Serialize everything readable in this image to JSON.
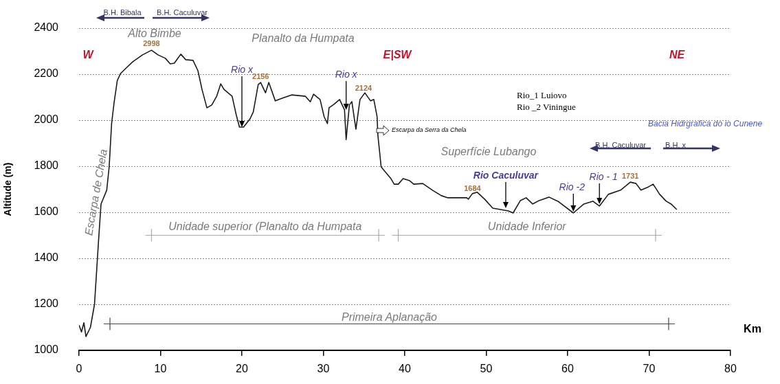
{
  "chart_data": {
    "type": "line",
    "ylabel": "Altitude (m)",
    "xlabel": "Km",
    "x": [
      0,
      0.3,
      0.6,
      0.85,
      1.4,
      1.9,
      2.4,
      2.7,
      3.4,
      3.7,
      4.0,
      4.3,
      4.7,
      5.1,
      5.7,
      6.6,
      7.8,
      8.9,
      9.7,
      10.6,
      11.2,
      11.7,
      12.5,
      13.1,
      14.0,
      14.6,
      15.1,
      15.7,
      16.3,
      16.9,
      17.4,
      17.8,
      18.8,
      19.3,
      19.7,
      20.2,
      21.0,
      21.4,
      22.0,
      22.3,
      22.9,
      23.3,
      24.1,
      25.0,
      26.1,
      27.8,
      28.4,
      28.8,
      29.6,
      30.1,
      30.5,
      30.7,
      31.3,
      32.0,
      32.6,
      32.8,
      33.2,
      33.5,
      34.0,
      34.5,
      35.1,
      35.8,
      36.2,
      36.6,
      36.7,
      37.1,
      38.3,
      38.7,
      39.2,
      39.8,
      40.6,
      41.1,
      42.2,
      43.4,
      44.5,
      45.3,
      47.6,
      47.8,
      48.3,
      48.9,
      49.8,
      50.8,
      52.7,
      53.3,
      54.2,
      54.9,
      55.7,
      56.5,
      57.7,
      58.8,
      60.7,
      62.0,
      63.1,
      63.9,
      65.0,
      66.5,
      67.7,
      68.4,
      69.0,
      69.9,
      70.5,
      71.3,
      72.1,
      72.7,
      73.4
    ],
    "series": [
      {
        "color": "#1a1a1a",
        "values": [
          1110,
          1080,
          1120,
          1060,
          1100,
          1200,
          1478,
          1636,
          1696,
          1797,
          1985,
          2075,
          2173,
          2203,
          2224,
          2254,
          2284,
          2304,
          2284,
          2269,
          2245,
          2248,
          2287,
          2263,
          2260,
          2215,
          2134,
          2054,
          2066,
          2104,
          2158,
          2134,
          2104,
          2024,
          1970,
          1970,
          2006,
          2036,
          2155,
          2164,
          2119,
          2164,
          2084,
          2096,
          2110,
          2104,
          2080,
          2113,
          2090,
          2015,
          1985,
          2054,
          2069,
          2090,
          2045,
          1916,
          2066,
          2081,
          1961,
          2090,
          2119,
          2084,
          2090,
          2015,
          1934,
          1797,
          1746,
          1722,
          1722,
          1746,
          1737,
          1722,
          1725,
          1696,
          1672,
          1663,
          1663,
          1657,
          1681,
          1687,
          1657,
          1618,
          1606,
          1597,
          1651,
          1663,
          1636,
          1651,
          1666,
          1648,
          1597,
          1636,
          1648,
          1627,
          1678,
          1696,
          1731,
          1725,
          1696,
          1710,
          1722,
          1678,
          1648,
          1636,
          1612
        ]
      },
      {
        "type": "line",
        "color": "#aaaaaa",
        "marker": "cross",
        "x": [
          8.9,
          36.8
        ],
        "values": [
          1500,
          1500
        ]
      },
      {
        "type": "line",
        "color": "#aaaaaa",
        "marker": "cross",
        "x": [
          39.2,
          70.8
        ],
        "values": [
          1500,
          1500
        ]
      },
      {
        "type": "line",
        "color": "#444444",
        "marker": "cross",
        "x": [
          3.8,
          72.4
        ],
        "values": [
          1115,
          1115
        ]
      }
    ],
    "xlim": [
      0,
      80
    ],
    "xticks": [
      0,
      10,
      20,
      30,
      40,
      50,
      60,
      70,
      80
    ],
    "ylim": [
      1000,
      2400
    ],
    "yticks": [
      1000,
      1200,
      1400,
      1600,
      1800,
      2000,
      2200,
      2400
    ],
    "grid": "y",
    "legend": false,
    "marker": "none",
    "line_style": "solid",
    "annotations": [
      "B.H. Bibala",
      "B.H. Caculuvar",
      "Alto Bimbe",
      "Planalto da Humpata",
      "W",
      "E|SW",
      "NE",
      "Rio_1  Luiovo",
      "Rio _2 Viningue",
      "Bacia Hidrgrafica do io Cunene",
      "Escarpa da Serra da Chela",
      "Superfície Lubango",
      "B.H. Caculuvar",
      "B.H. x",
      "Escarpa de Chela",
      {
        "text": "2998",
        "x": 8.9,
        "y": 2304
      },
      {
        "text": "2156",
        "x": 22.3,
        "y": 2164
      },
      {
        "text": "2124",
        "x": 35.1,
        "y": 2119
      },
      {
        "text": "1684",
        "x": 48.9,
        "y": 1687
      },
      {
        "text": "1731",
        "x": 67.7,
        "y": 1731
      },
      {
        "text": "Rio x",
        "x": 20.0,
        "y": 1970
      },
      {
        "text": "Rio x",
        "x": 32.8,
        "y": 2045
      },
      {
        "text": "Rio Caculuvar",
        "x": 52.4,
        "y": 1618
      },
      {
        "text": "Rio -2",
        "x": 60.7,
        "y": 1603
      },
      {
        "text": "Rio - 1",
        "x": 63.9,
        "y": 1636
      },
      {
        "text": "Unidade superior (Planalto da Humpata",
        "x": 22.85,
        "y": 1500
      },
      {
        "text": "Unidade Inferior",
        "x": 55,
        "y": 1500
      },
      {
        "text": "Primeira Aplanação",
        "x": 38.1,
        "y": 1115
      }
    ]
  }
}
